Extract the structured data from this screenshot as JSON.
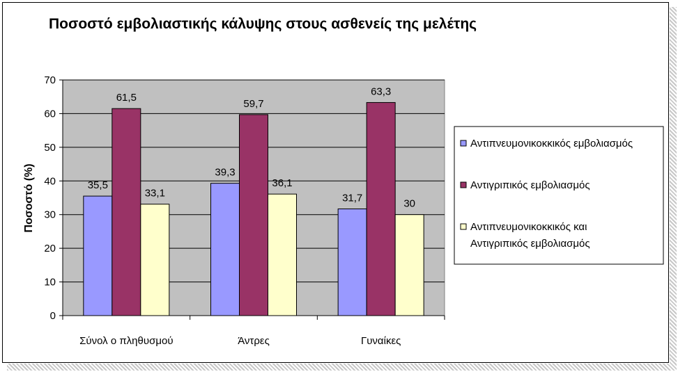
{
  "chart_data": {
    "type": "bar",
    "title": "Ποσοστό εμβολιαστικής κάλυψης στους ασθενείς της μελέτης",
    "ylabel": "Ποσοστό (%)",
    "xlabel": "",
    "ylim": [
      0,
      70
    ],
    "yticks": [
      0,
      10,
      20,
      30,
      40,
      50,
      60,
      70
    ],
    "grid": true,
    "legend_position": "right",
    "categories": [
      "Σύνολ ο πληθυσμού",
      "Άντρες",
      "Γυναίκες"
    ],
    "series": [
      {
        "name": "Αντιπνευμονικοκκικός εμβολιασμός",
        "values": [
          35.5,
          39.3,
          31.7
        ],
        "labels": [
          "35,5",
          "39,3",
          "31,7"
        ],
        "color": "#9999ff"
      },
      {
        "name": "Αντιγριπικός εμβολιασμός",
        "values": [
          61.5,
          59.7,
          63.3
        ],
        "labels": [
          "61,5",
          "59,7",
          "63,3"
        ],
        "color": "#993366"
      },
      {
        "name": "Αντιπνευμονικοκκικός και Αντιγριπικός εμβολιασμός",
        "name_lines": [
          "Αντιπνευμονικοκκικός και",
          "Αντιγριπικός εμβολιασμός"
        ],
        "values": [
          33.1,
          36.1,
          30
        ],
        "labels": [
          "33,1",
          "36,1",
          "30"
        ],
        "color": "#ffffcc"
      }
    ],
    "colors": {
      "plot_background": "#c0c0c0",
      "grid": "#000000",
      "axis": "#000000"
    }
  }
}
